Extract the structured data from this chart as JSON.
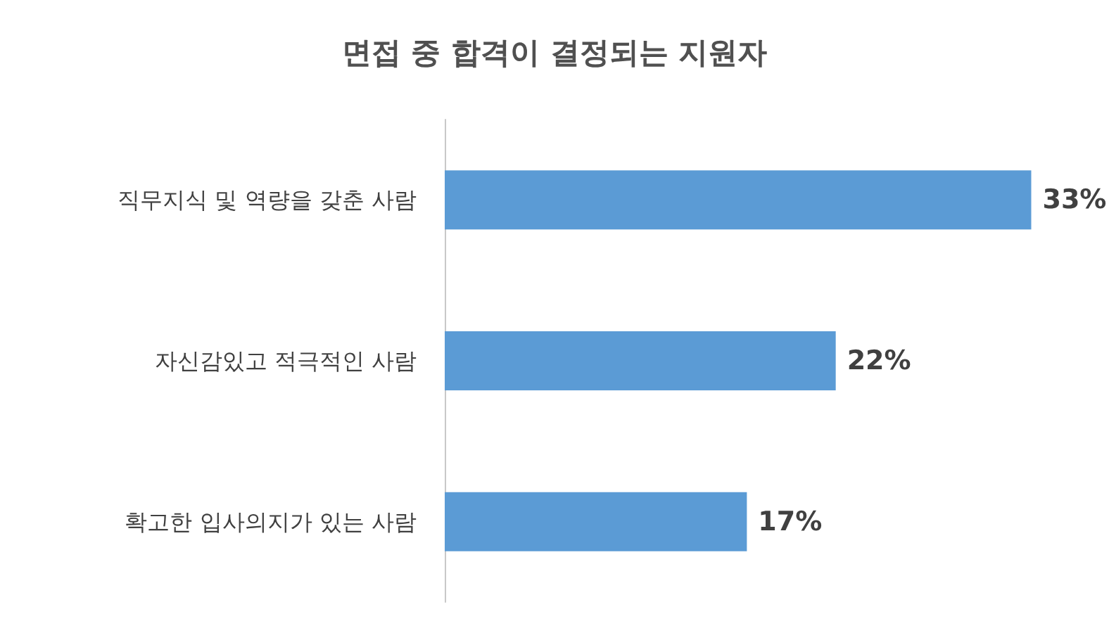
{
  "chart_data": {
    "type": "bar",
    "orientation": "horizontal",
    "title": "면접 중 합격이 결정되는 지원자",
    "categories": [
      "직무지식 및 역량을 갖춘 사람",
      "자신감있고 적극적인 사람",
      "확고한 입사의지가 있는 사람"
    ],
    "values": [
      33,
      22,
      17
    ],
    "value_labels": [
      "33%",
      "22%",
      "17%"
    ],
    "color": "#5b9bd5"
  }
}
